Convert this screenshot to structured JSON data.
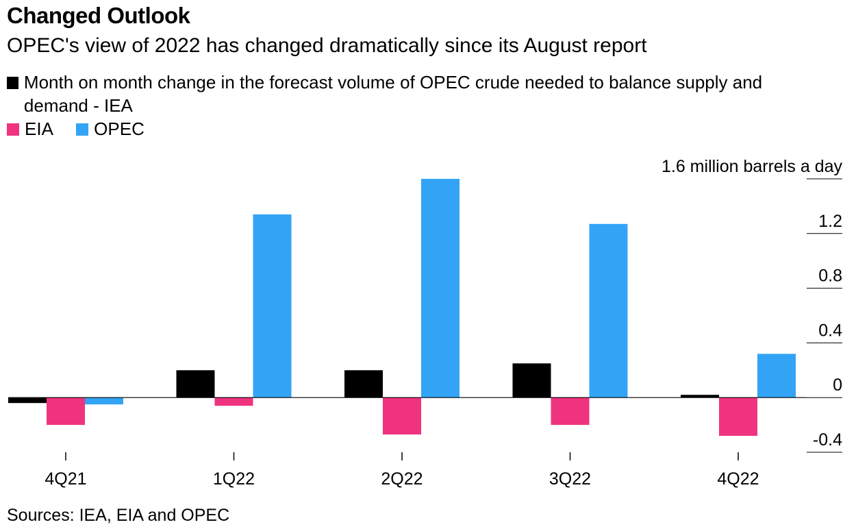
{
  "title": "Changed Outlook",
  "subtitle": "OPEC's view of 2022 has changed dramatically since its August report",
  "source": "Sources: IEA, EIA and OPEC",
  "colors": {
    "IEA": "#000000",
    "EIA": "#f0337f",
    "OPEC": "#33a4f5"
  },
  "chart_data": {
    "type": "bar",
    "categories": [
      "4Q21",
      "1Q22",
      "2Q22",
      "3Q22",
      "4Q22"
    ],
    "series": [
      {
        "name": "Month on month change in the forecast volume of OPEC crude needed to balance supply and demand - IEA",
        "key": "IEA",
        "values": [
          -0.04,
          0.2,
          0.2,
          0.25,
          0.02
        ]
      },
      {
        "name": "EIA",
        "key": "EIA",
        "values": [
          -0.2,
          -0.06,
          -0.27,
          -0.2,
          -0.28
        ]
      },
      {
        "name": "OPEC",
        "key": "OPEC",
        "values": [
          -0.05,
          1.34,
          1.6,
          1.27,
          0.32
        ]
      }
    ],
    "ylabel": "million barrels a day",
    "ylim": [
      -0.4,
      1.6
    ],
    "yticks": [
      -0.4,
      0,
      0.4,
      0.8,
      1.2,
      1.6
    ],
    "ytick_labels": [
      "-0.4",
      "0",
      "0.4",
      "0.8",
      "1.2",
      "1.6 million barrels a day"
    ],
    "axis_side": "right",
    "legend_position": "top-left"
  }
}
